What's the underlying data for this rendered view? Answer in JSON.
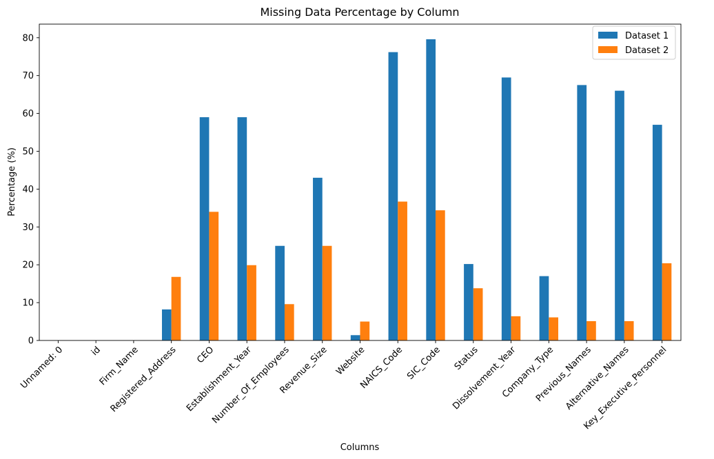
{
  "chart_data": {
    "type": "bar",
    "title": "Missing Data Percentage by Column",
    "xlabel": "Columns",
    "ylabel": "Percentage (%)",
    "ylim": [
      0,
      83.6
    ],
    "yticks": [
      0,
      10,
      20,
      30,
      40,
      50,
      60,
      70,
      80
    ],
    "categories": [
      "Unnamed: 0",
      "id",
      "Firm_Name",
      "Registered_Address",
      "CEO",
      "Establishment_Year",
      "Number_Of_Employees",
      "Revenue_Size",
      "Website",
      "NAICS_Code",
      "SIC_Code",
      "Status",
      "Dissolvement_Year",
      "Company_Type",
      "Previous_Names",
      "Alternative_Names",
      "Key_Executive_Personnel"
    ],
    "series": [
      {
        "name": "Dataset 1",
        "color": "#1f77b4",
        "values": [
          0,
          0,
          0,
          8.2,
          59,
          59,
          25,
          43,
          1.4,
          76.2,
          79.6,
          20.2,
          69.5,
          17,
          67.5,
          66,
          57
        ]
      },
      {
        "name": "Dataset 2",
        "color": "#ff7f0e",
        "values": [
          0,
          0,
          0,
          16.8,
          34,
          19.9,
          9.6,
          25,
          5,
          36.7,
          34.4,
          13.8,
          6.4,
          6.1,
          5.1,
          5.1,
          20.4
        ]
      }
    ],
    "legend_position": "top-right",
    "grid": false
  }
}
